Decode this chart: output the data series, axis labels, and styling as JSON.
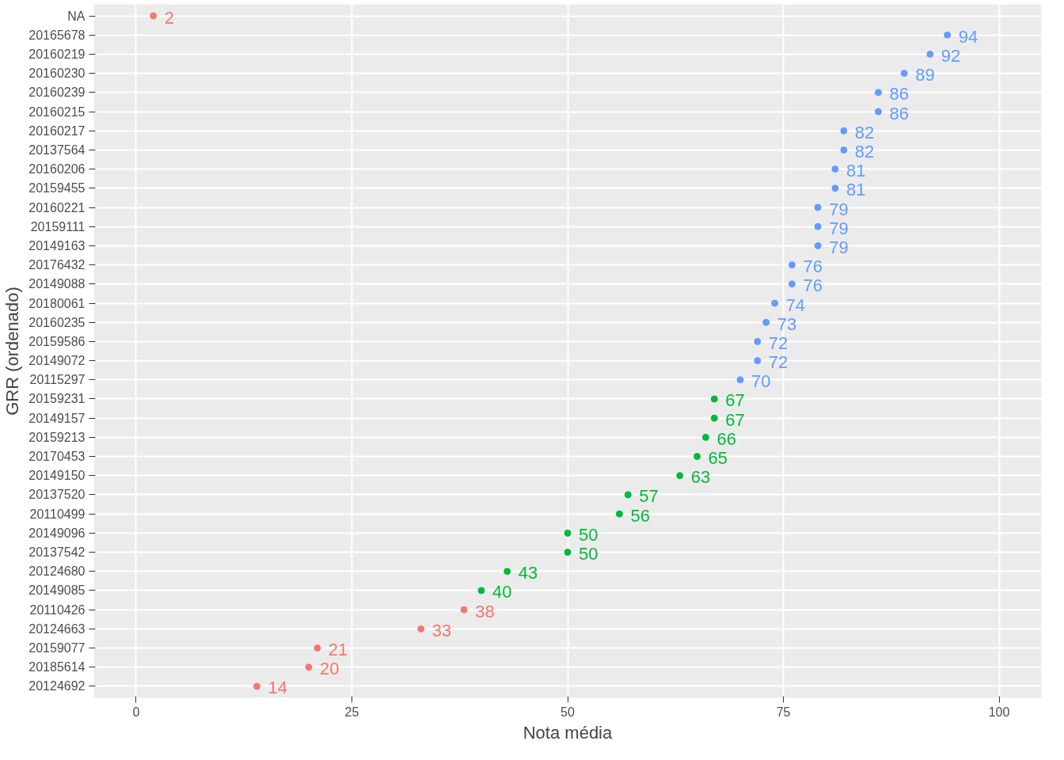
{
  "chart_data": {
    "type": "scatter",
    "orientation": "horizontal",
    "xlabel": "Nota média",
    "ylabel": "GRR (ordenado)",
    "categories": [
      "NA",
      "20165678",
      "20160219",
      "20160230",
      "20160239",
      "20160215",
      "20160217",
      "20137564",
      "20160206",
      "20159455",
      "20160221",
      "20159111",
      "20149163",
      "20176432",
      "20149088",
      "20180061",
      "20160235",
      "20159586",
      "20149072",
      "20115297",
      "20159231",
      "20149157",
      "20159213",
      "20170453",
      "20149150",
      "20137520",
      "20110499",
      "20149096",
      "20137542",
      "20124680",
      "20149085",
      "20110426",
      "20124663",
      "20159077",
      "20185614",
      "20124692"
    ],
    "values": [
      2,
      94,
      92,
      89,
      86,
      86,
      82,
      82,
      81,
      81,
      79,
      79,
      79,
      76,
      76,
      74,
      73,
      72,
      72,
      70,
      67,
      67,
      66,
      65,
      63,
      57,
      56,
      50,
      50,
      43,
      40,
      38,
      33,
      21,
      20,
      14
    ],
    "colors": [
      "#f8766d",
      "#619cff",
      "#619cff",
      "#619cff",
      "#619cff",
      "#619cff",
      "#619cff",
      "#619cff",
      "#619cff",
      "#619cff",
      "#619cff",
      "#619cff",
      "#619cff",
      "#619cff",
      "#619cff",
      "#619cff",
      "#619cff",
      "#619cff",
      "#619cff",
      "#619cff",
      "#00ba38",
      "#00ba38",
      "#00ba38",
      "#00ba38",
      "#00ba38",
      "#00ba38",
      "#00ba38",
      "#00ba38",
      "#00ba38",
      "#00ba38",
      "#00ba38",
      "#f8766d",
      "#f8766d",
      "#f8766d",
      "#f8766d",
      "#f8766d"
    ],
    "xlim": [
      -4.9,
      104.9
    ],
    "xticks": [
      0,
      25,
      50,
      75,
      100
    ],
    "grid": true,
    "marker": "circle",
    "data_labels": true
  }
}
